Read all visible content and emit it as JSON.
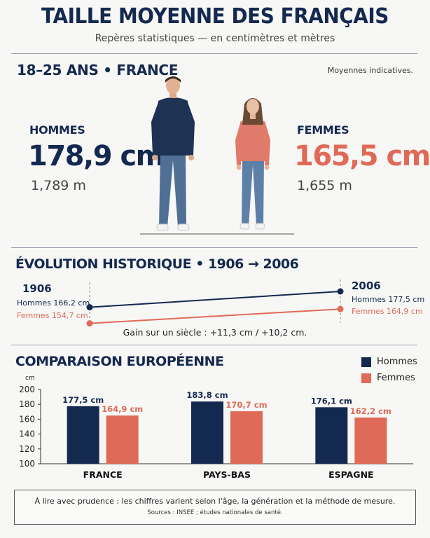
{
  "header": {
    "title": "TAILLE MOYENNE DES FRANÇAIS",
    "subtitle": "Repères statistiques — en centimètres et mètres"
  },
  "section_current": {
    "title": "18–25 ANS • FRANCE",
    "note": "Moyennes indicatives.",
    "men": {
      "label": "HOMMES",
      "cm": "178,9 cm",
      "m": "1,789 m"
    },
    "women": {
      "label": "FEMMES",
      "cm": "165,5 cm",
      "m": "1,655 m"
    }
  },
  "section_history": {
    "title": "ÉVOLUTION HISTORIQUE • 1906 → 2006",
    "start": {
      "year": "1906",
      "men": "Hommes 166,2 cm",
      "women": "Femmes 154,7 cm"
    },
    "end": {
      "year": "2006",
      "men": "Hommes 177,5 cm",
      "women": "Femmes 164,9 cm"
    },
    "gain": "Gain sur un siècle : +11,3 cm / +10,2 cm."
  },
  "section_europe": {
    "title": "COMPARAISON EUROPÉENNE"
  },
  "colors": {
    "navy": "#14294f",
    "coral": "#e06a58"
  },
  "chart_data": [
    {
      "type": "line",
      "x": [
        1906,
        2006
      ],
      "series": [
        {
          "name": "Hommes",
          "values": [
            166.2,
            177.5
          ]
        },
        {
          "name": "Femmes",
          "values": [
            154.7,
            164.9
          ]
        }
      ]
    },
    {
      "type": "bar",
      "categories": [
        "FRANCE",
        "PAYS-BAS",
        "ESPAGNE"
      ],
      "series": [
        {
          "name": "Hommes",
          "values": [
            177.5,
            183.8,
            176.1
          ],
          "labels": [
            "177,5 cm",
            "183,8 cm",
            "176,1 cm"
          ]
        },
        {
          "name": "Femmes",
          "values": [
            164.9,
            170.7,
            162.2
          ],
          "labels": [
            "164,9 cm",
            "170,7 cm",
            "162,2 cm"
          ]
        }
      ],
      "ylabel": "cm",
      "ylim": [
        100,
        200
      ],
      "yticks": [
        100,
        120,
        140,
        160,
        180,
        200
      ],
      "legend": "top-right"
    }
  ],
  "footer": {
    "main": "À lire avec prudence : les chiffres varient selon l'âge, la génération et la méthode de mesure.",
    "sources": "Sources : INSEE ; études nationales de santé."
  }
}
